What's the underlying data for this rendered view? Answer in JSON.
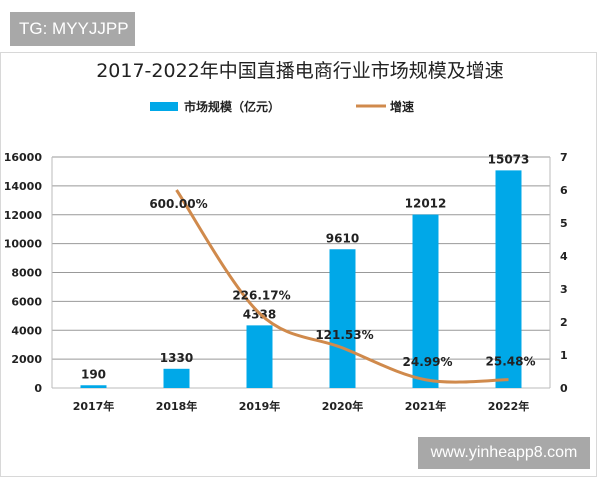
{
  "watermarks": {
    "top_left": "TG: MYYJJPP",
    "bottom_right": "www.yinheapp8.com"
  },
  "chart_data": {
    "type": "bar+line",
    "title": "2017-2022年中国直播电商行业市场规模及增速",
    "categories": [
      "2017年",
      "2018年",
      "2019年",
      "2020年",
      "2021年",
      "2022年"
    ],
    "series": [
      {
        "name": "市场规模（亿元）",
        "type": "bar",
        "axis": "left",
        "color": "#00a8e8",
        "values": [
          190,
          1330,
          4338,
          9610,
          12012,
          15073
        ],
        "labels": [
          "190",
          "1330",
          "4338",
          "9610",
          "12012",
          "15073"
        ]
      },
      {
        "name": "增速",
        "type": "line",
        "axis": "right",
        "color": "#d08a4c",
        "values": [
          null,
          6.0,
          2.2617,
          1.2153,
          0.2499,
          0.2548
        ],
        "labels": [
          null,
          "600.00%",
          "226.17%",
          "121.53%",
          "24.99%",
          "25.48%"
        ]
      }
    ],
    "y_left": {
      "range": [
        0,
        16000
      ],
      "ticks": [
        0,
        2000,
        4000,
        6000,
        8000,
        10000,
        12000,
        14000,
        16000
      ]
    },
    "y_right": {
      "range": [
        0,
        7
      ],
      "ticks": [
        0,
        1,
        2,
        3,
        4,
        5,
        6,
        7
      ]
    },
    "grid": true,
    "legend": "top"
  }
}
